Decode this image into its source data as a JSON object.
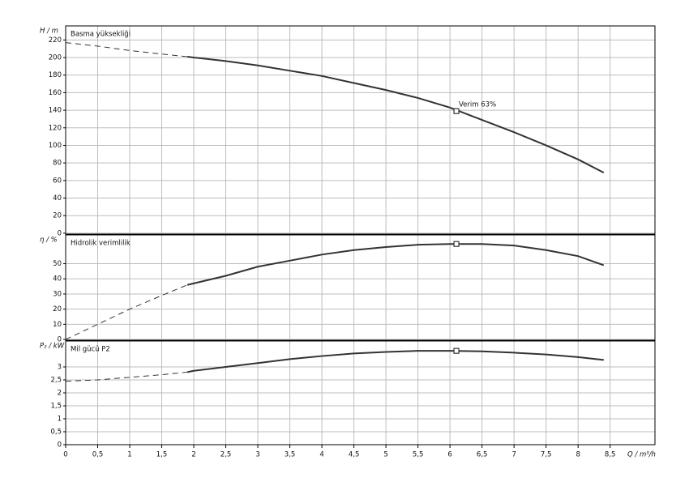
{
  "chart_data": [
    {
      "type": "line",
      "ylabel": "H / m",
      "title": "Basma yüksekliği",
      "x": [
        0,
        0.5,
        1,
        1.5,
        1.9,
        2,
        2.5,
        3,
        3.5,
        4,
        4.5,
        5,
        5.5,
        6,
        6.5,
        7,
        7.5,
        8,
        8.4
      ],
      "series": [
        {
          "style": "dashed",
          "color": "#333333",
          "values": [
            217,
            213,
            208,
            204,
            201,
            null,
            null,
            null,
            null,
            null,
            null,
            null,
            null,
            null,
            null,
            null,
            null,
            null,
            null
          ]
        },
        {
          "style": "solid",
          "color": "#333333",
          "values": [
            null,
            null,
            null,
            null,
            201,
            200,
            196,
            191,
            185,
            179,
            171,
            163,
            154,
            143,
            129,
            115,
            100,
            84,
            69
          ]
        }
      ],
      "marker": {
        "x": 6.1,
        "y": 139
      },
      "annotation": "Verim  63%",
      "ylim": [
        -1,
        236
      ],
      "yticks": [
        0,
        20,
        40,
        60,
        80,
        100,
        120,
        140,
        160,
        180,
        200,
        220
      ],
      "grid": true
    },
    {
      "type": "line",
      "ylabel": "η / %",
      "title": "Hidrolik verimlilik",
      "x": [
        0,
        0.5,
        1,
        1.5,
        1.9,
        2,
        2.5,
        3,
        3.5,
        4,
        4.5,
        5,
        5.5,
        6,
        6.5,
        7,
        7.5,
        8,
        8.4
      ],
      "series": [
        {
          "style": "dashed",
          "color": "#333333",
          "values": [
            0,
            10,
            20,
            29,
            36,
            null,
            null,
            null,
            null,
            null,
            null,
            null,
            null,
            null,
            null,
            null,
            null,
            null,
            null
          ]
        },
        {
          "style": "solid",
          "color": "#333333",
          "values": [
            null,
            null,
            null,
            null,
            36,
            37,
            42,
            48,
            52,
            56,
            59,
            61,
            62.5,
            63,
            63,
            62,
            59,
            55,
            49
          ]
        }
      ],
      "marker": {
        "x": 6.1,
        "y": 63
      },
      "ylim": [
        -0.5,
        69
      ],
      "yticks": [
        0,
        10,
        20,
        30,
        40,
        50
      ],
      "grid": true
    },
    {
      "type": "line",
      "ylabel": "P₂ / kW",
      "title": "Mil gücü P2",
      "xlabel": "Q / m³/h",
      "x": [
        0,
        0.5,
        1,
        1.5,
        1.9,
        2,
        2.5,
        3,
        3.5,
        4,
        4.5,
        5,
        5.5,
        6,
        6.5,
        7,
        7.5,
        8,
        8.4
      ],
      "series": [
        {
          "style": "dashed",
          "color": "#333333",
          "values": [
            2.45,
            2.5,
            2.6,
            2.7,
            2.8,
            null,
            null,
            null,
            null,
            null,
            null,
            null,
            null,
            null,
            null,
            null,
            null,
            null,
            null
          ]
        },
        {
          "style": "solid",
          "color": "#333333",
          "values": [
            null,
            null,
            null,
            null,
            2.8,
            2.85,
            3.0,
            3.15,
            3.3,
            3.42,
            3.52,
            3.58,
            3.62,
            3.62,
            3.6,
            3.55,
            3.48,
            3.38,
            3.27
          ]
        }
      ],
      "marker": {
        "x": 6.1,
        "y": 3.62
      },
      "ylim": [
        0,
        4
      ],
      "yticks": [
        0,
        {
          "value": 0.5,
          "label": "0,5"
        },
        1,
        {
          "value": 1.5,
          "label": "1,5"
        },
        2,
        {
          "value": 2.5,
          "label": "2,5"
        },
        3
      ],
      "grid": true,
      "xlim": [
        0,
        9.2
      ],
      "xticks": [
        0,
        {
          "value": 0.5,
          "label": "0,5"
        },
        1,
        {
          "value": 1.5,
          "label": "1,5"
        },
        2,
        {
          "value": 2.5,
          "label": "2,5"
        },
        3,
        {
          "value": 3.5,
          "label": "3,5"
        },
        4,
        {
          "value": 4.5,
          "label": "4,5"
        },
        5,
        {
          "value": 5.5,
          "label": "5,5"
        },
        6,
        {
          "value": 6.5,
          "label": "6,5"
        },
        7,
        {
          "value": 7.5,
          "label": "7,5"
        },
        8,
        {
          "value": 8.5,
          "label": "8,5"
        }
      ]
    }
  ]
}
